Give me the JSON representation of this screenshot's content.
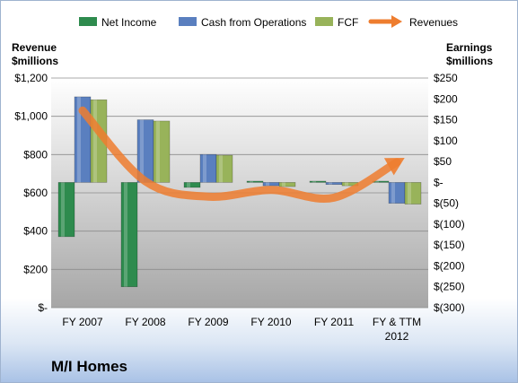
{
  "colors": {
    "net_income": "#2e8b4e",
    "cash_from_operations": "#5a7fbf",
    "fcf": "#98b35a",
    "revenues": "#ee7d2f"
  },
  "chart_data": {
    "type": "bar",
    "company": "M/I Homes",
    "legend_position": "top",
    "left_axis": {
      "title_line1": "Revenue",
      "title_line2": "$millions",
      "ylim": [
        0,
        1200
      ],
      "ticks": [
        {
          "value": 0,
          "label": "$-"
        },
        {
          "value": 200,
          "label": "$200"
        },
        {
          "value": 400,
          "label": "$400"
        },
        {
          "value": 600,
          "label": "$600"
        },
        {
          "value": 800,
          "label": "$800"
        },
        {
          "value": 1000,
          "label": "$1,000"
        },
        {
          "value": 1200,
          "label": "$1,200"
        }
      ]
    },
    "right_axis": {
      "title_line1": "Earnings",
      "title_line2": "$millions",
      "ylim": [
        -300,
        250
      ],
      "ticks": [
        {
          "value": 250,
          "label": "$250"
        },
        {
          "value": 200,
          "label": "$200"
        },
        {
          "value": 150,
          "label": "$150"
        },
        {
          "value": 100,
          "label": "$100"
        },
        {
          "value": 50,
          "label": "$50"
        },
        {
          "value": 0,
          "label": "$-"
        },
        {
          "value": -50,
          "label": "$(50)"
        },
        {
          "value": -100,
          "label": "$(100)"
        },
        {
          "value": -150,
          "label": "$(150)"
        },
        {
          "value": -200,
          "label": "$(200)"
        },
        {
          "value": -250,
          "label": "$(250)"
        },
        {
          "value": -300,
          "label": "$(300)"
        }
      ]
    },
    "categories": [
      {
        "line1": "FY 2007",
        "line2": ""
      },
      {
        "line1": "FY 2008",
        "line2": ""
      },
      {
        "line1": "FY 2009",
        "line2": ""
      },
      {
        "line1": "FY 2010",
        "line2": ""
      },
      {
        "line1": "FY 2011",
        "line2": ""
      },
      {
        "line1": "FY & TTM",
        "line2": "2012"
      }
    ],
    "series": [
      {
        "name": "Net Income",
        "key": "net_income",
        "kind": "bar",
        "axis": "right",
        "values": [
          -130,
          -250,
          -12,
          3,
          3,
          3
        ]
      },
      {
        "name": "Cash from Operations",
        "key": "cash_from_operations",
        "kind": "bar",
        "axis": "right",
        "values": [
          205,
          150,
          67,
          -8,
          -5,
          -50
        ]
      },
      {
        "name": "FCF",
        "key": "fcf",
        "kind": "bar",
        "axis": "right",
        "values": [
          198,
          147,
          65,
          -10,
          -8,
          -52
        ]
      },
      {
        "name": "Revenues",
        "key": "revenues",
        "kind": "arrow-line",
        "axis": "left",
        "values": [
          1030,
          660,
          580,
          615,
          575,
          760
        ]
      }
    ]
  }
}
